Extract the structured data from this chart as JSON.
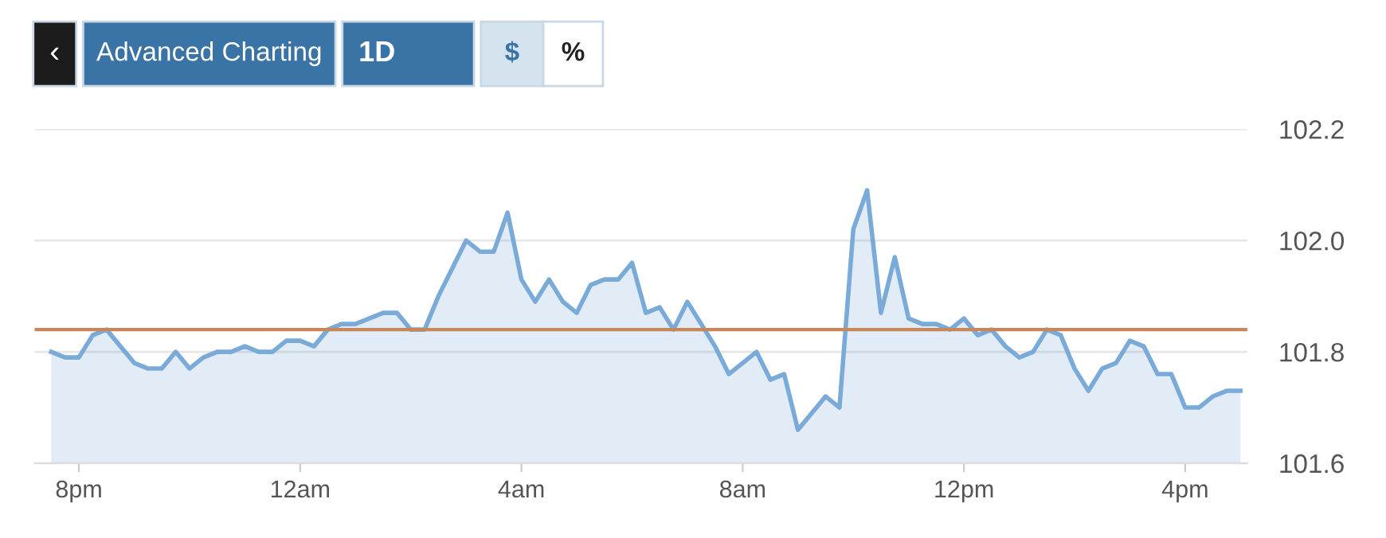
{
  "chart_data": {
    "type": "area",
    "annotations": [
      "‹",
      "Advanced Charting",
      "1D",
      "$",
      "%"
    ],
    "categories": [
      null,
      null,
      "8pm",
      null,
      null,
      null,
      null,
      null,
      null,
      null,
      null,
      null,
      null,
      null,
      null,
      null,
      null,
      null,
      "12am",
      null,
      null,
      null,
      null,
      null,
      null,
      null,
      null,
      null,
      null,
      null,
      null,
      null,
      null,
      null,
      "4am",
      null,
      null,
      null,
      null,
      null,
      null,
      null,
      null,
      null,
      null,
      null,
      null,
      null,
      null,
      null,
      "8am",
      null,
      null,
      null,
      null,
      null,
      null,
      null,
      null,
      null,
      null,
      null,
      null,
      null,
      null,
      null,
      "12pm",
      null,
      null,
      null,
      null,
      null,
      null,
      null,
      null,
      null,
      null,
      null,
      null,
      null,
      null,
      null,
      "4pm",
      null,
      null,
      null,
      null
    ],
    "series": [
      {
        "color": "#7aaad8",
        "values": [
          101.8,
          101.79,
          101.79,
          101.83,
          101.84,
          101.81,
          101.78,
          101.77,
          101.77,
          101.8,
          101.77,
          101.79,
          101.8,
          101.8,
          101.81,
          101.8,
          101.8,
          101.82,
          101.82,
          101.81,
          101.84,
          101.85,
          101.85,
          101.86,
          101.87,
          101.87,
          101.84,
          101.84,
          101.9,
          101.95,
          102.0,
          101.98,
          101.98,
          102.05,
          101.93,
          101.89,
          101.93,
          101.89,
          101.87,
          101.92,
          101.93,
          101.93,
          101.96,
          101.87,
          101.88,
          101.84,
          101.89,
          101.85,
          101.81,
          101.76,
          101.78,
          101.8,
          101.75,
          101.76,
          101.66,
          101.69,
          101.72,
          101.7,
          102.02,
          102.09,
          101.87,
          101.97,
          101.86,
          101.85,
          101.85,
          101.84,
          101.86,
          101.83,
          101.84,
          101.81,
          101.79,
          101.8,
          101.84,
          101.83,
          101.77,
          101.73,
          101.77,
          101.78,
          101.82,
          101.81,
          101.76,
          101.76,
          101.7,
          101.7,
          101.72,
          101.73,
          101.73
        ]
      }
    ],
    "ref_lines": [
      {
        "axis": "y",
        "value": 101.84,
        "color": "#c8875a"
      }
    ],
    "ylim": [
      101.6,
      102.2
    ],
    "yticks": [
      101.6,
      101.8,
      {
        "value": 102,
        "label": "102.0"
      },
      102.2
    ],
    "grid": "y",
    "legend": false
  }
}
